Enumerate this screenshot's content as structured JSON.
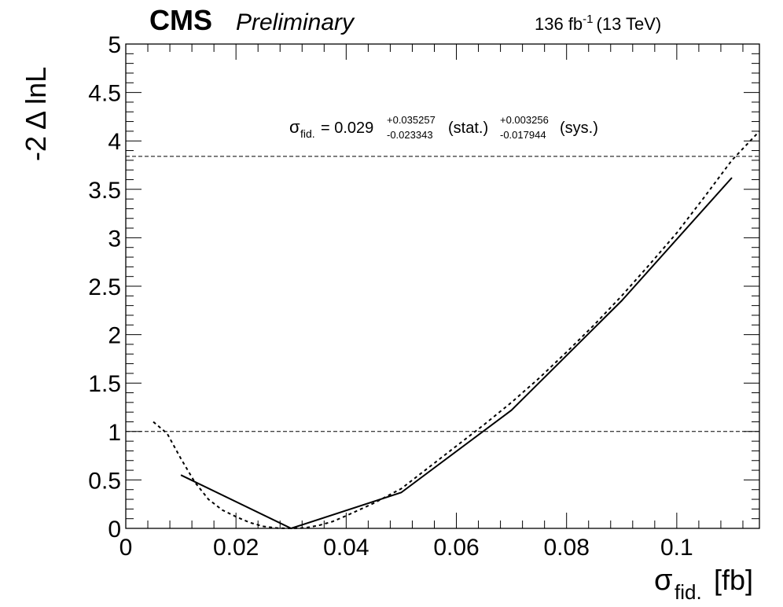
{
  "header": {
    "experiment": "CMS",
    "status": "Preliminary",
    "lumi_value": "136 fb",
    "lumi_exp": "-1",
    "energy": "(13 TeV)"
  },
  "annotation": {
    "symbol": "σ",
    "subscript": "fid.",
    "equals": "= 0.029",
    "stat_up": "+0.035257",
    "stat_down": "-0.023343",
    "stat_label": "(stat.)",
    "sys_up": "+0.003256",
    "sys_down": "-0.017944",
    "sys_label": "(sys.)"
  },
  "axes": {
    "x_symbol": "σ",
    "x_sub": "fid.",
    "x_unit": "[fb]",
    "y_title": "-2 Δ lnL"
  },
  "chart_data": {
    "type": "line",
    "xlim": [
      0,
      0.115
    ],
    "ylim": [
      0,
      5
    ],
    "x_ticks": [
      0,
      0.02,
      0.04,
      0.06,
      0.08,
      0.1
    ],
    "x_tick_labels": [
      "0",
      "0.02",
      "0.04",
      "0.06",
      "0.08",
      "0.1"
    ],
    "y_ticks": [
      0,
      0.5,
      1,
      1.5,
      2,
      2.5,
      3,
      3.5,
      4,
      4.5,
      5
    ],
    "y_tick_labels": [
      "0",
      "0.5",
      "1",
      "1.5",
      "2",
      "2.5",
      "3",
      "3.5",
      "4",
      "4.5",
      "5"
    ],
    "reference_lines": [
      1.0,
      3.84
    ],
    "series": [
      {
        "style": "solid",
        "color": "#000000",
        "x": [
          0.01,
          0.03,
          0.05,
          0.07,
          0.09,
          0.11
        ],
        "y": [
          0.55,
          0.0,
          0.37,
          1.22,
          2.35,
          3.62
        ]
      },
      {
        "style": "dashed",
        "color": "#000000",
        "x": [
          0.005,
          0.0075,
          0.01,
          0.0125,
          0.015,
          0.0175,
          0.02,
          0.0225,
          0.025,
          0.0275,
          0.03,
          0.0325,
          0.035,
          0.0375,
          0.04,
          0.045,
          0.05,
          0.055,
          0.06,
          0.065,
          0.07,
          0.075,
          0.08,
          0.085,
          0.09,
          0.095,
          0.1,
          0.105,
          0.11,
          0.115
        ],
        "y": [
          1.1,
          0.98,
          0.72,
          0.48,
          0.3,
          0.19,
          0.12,
          0.06,
          0.02,
          0.003,
          0.0,
          0.005,
          0.03,
          0.07,
          0.13,
          0.26,
          0.41,
          0.63,
          0.85,
          1.07,
          1.3,
          1.55,
          1.82,
          2.1,
          2.4,
          2.72,
          3.05,
          3.42,
          3.8,
          4.1
        ]
      }
    ]
  }
}
